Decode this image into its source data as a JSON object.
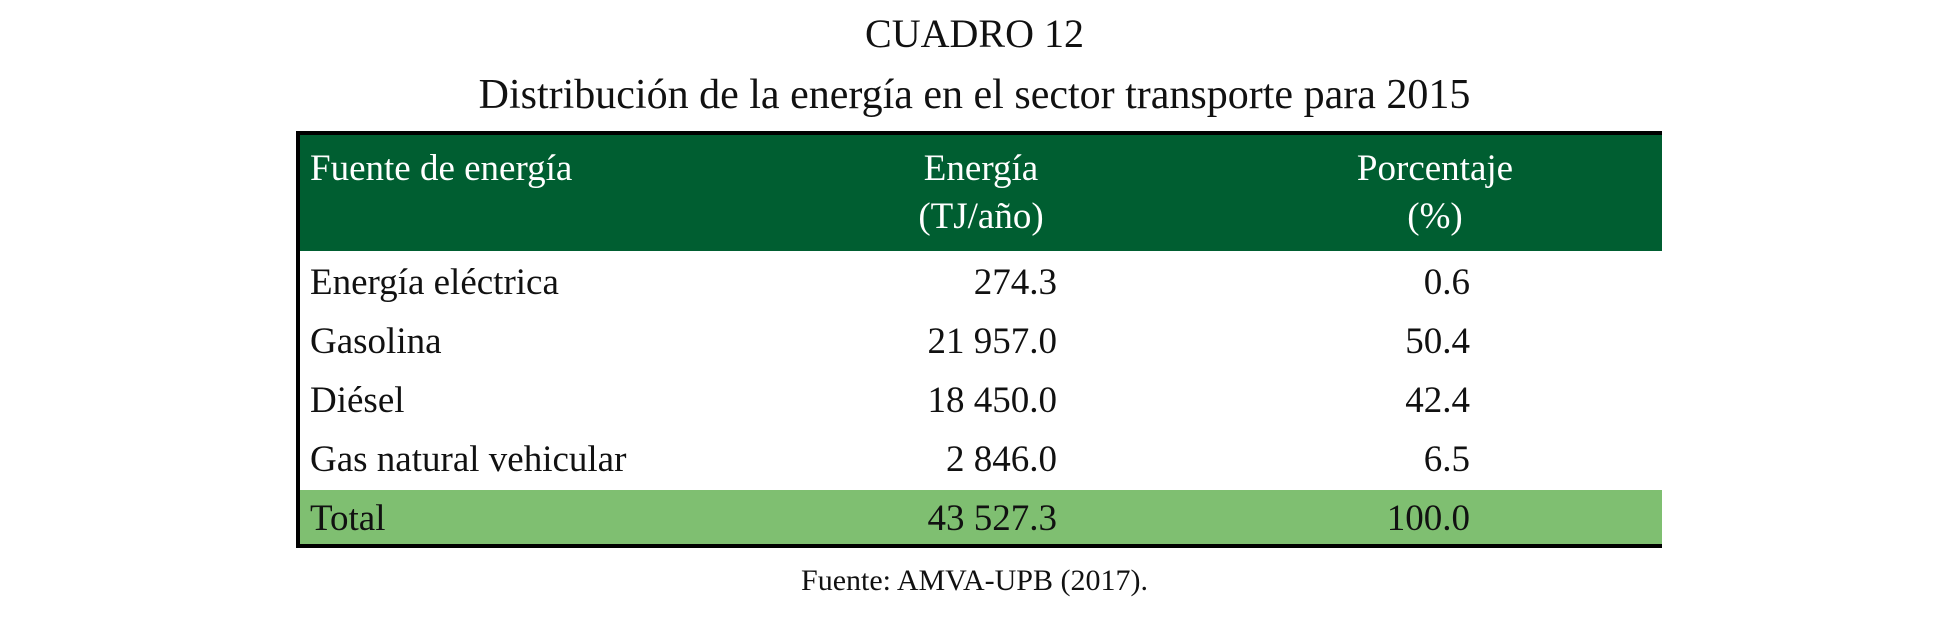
{
  "title": "CUADRO 12",
  "subtitle": "Distribución de la energía en el sector transporte para 2015",
  "table": {
    "header": [
      [
        "Fuente de energía"
      ],
      [
        "Energía",
        "(TJ/año)"
      ],
      [
        "Porcentaje",
        "(%)"
      ]
    ],
    "rows": [
      [
        "Energía eléctrica",
        "274.3",
        "0.6"
      ],
      [
        "Gasolina",
        "21 957.0",
        "50.4"
      ],
      [
        "Diésel",
        "18 450.0",
        "42.4"
      ],
      [
        "Gas natural vehicular",
        "2 846.0",
        "6.5"
      ]
    ],
    "total": [
      "Total",
      "43 527.3",
      "100.0"
    ]
  },
  "source": "Fuente: AMVA-UPB (2017)."
}
